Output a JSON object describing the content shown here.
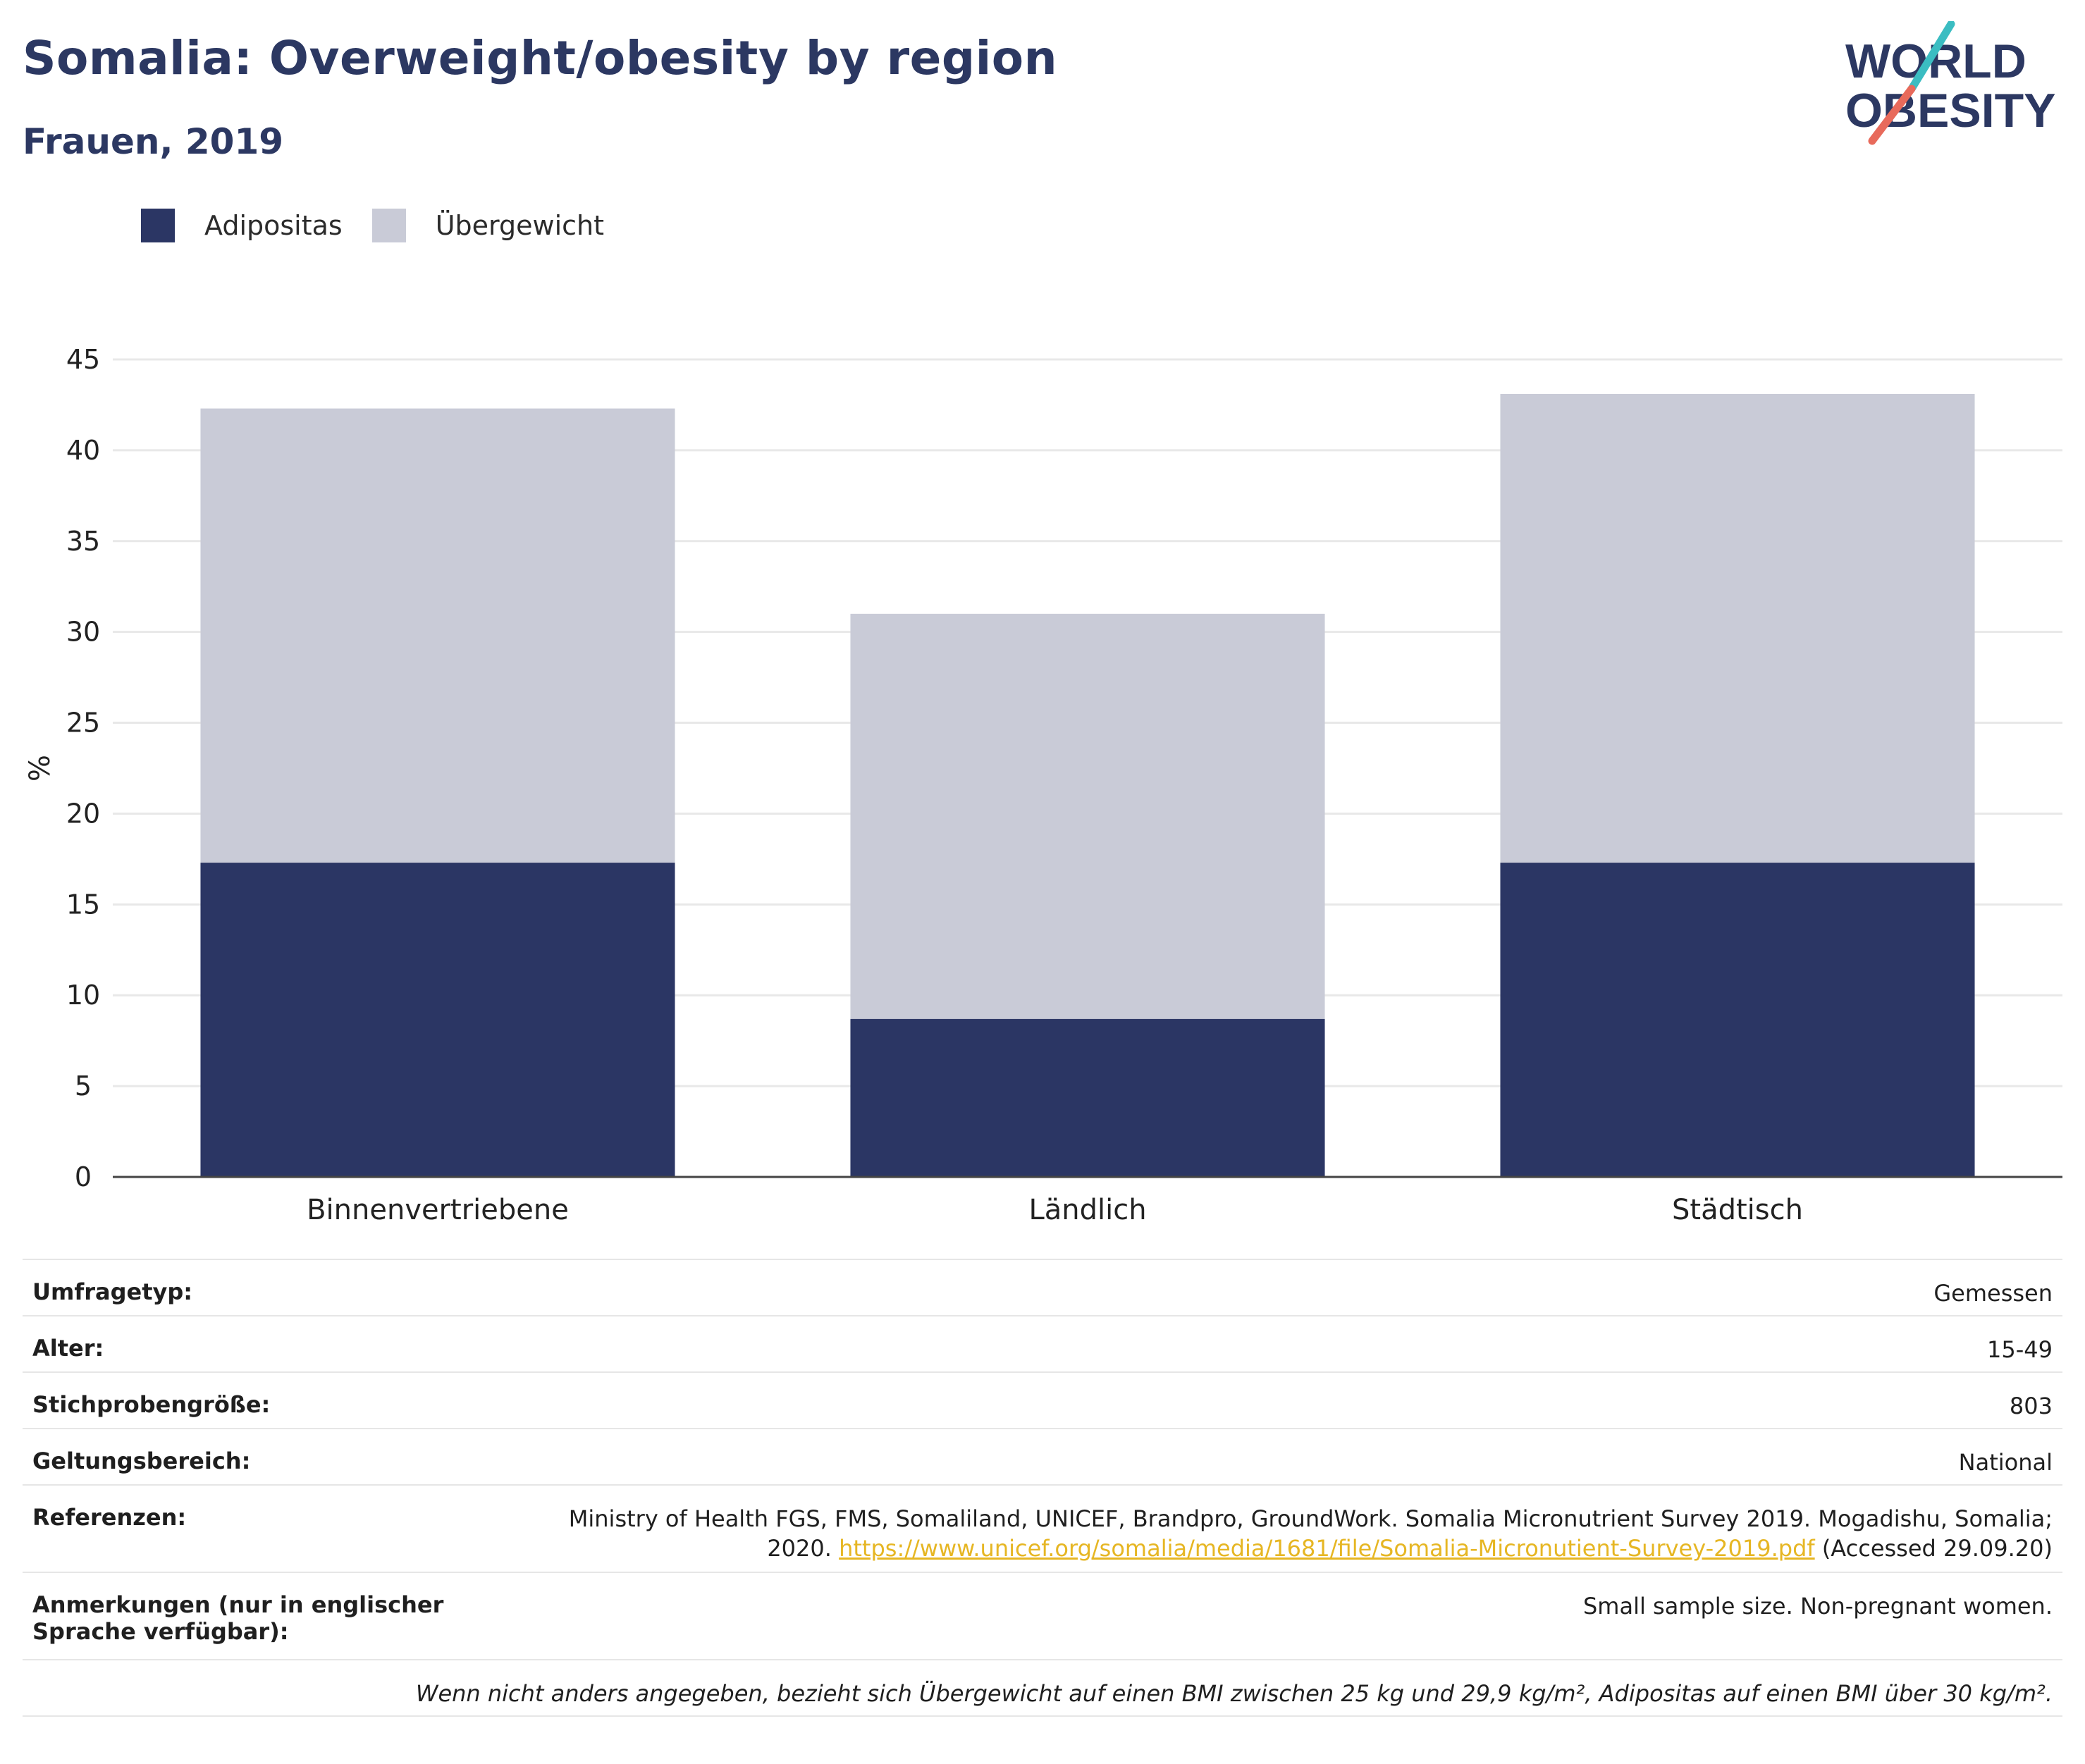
{
  "header": {
    "title": "Somalia: Overweight/obesity by region",
    "subtitle": "Frauen, 2019"
  },
  "logo": {
    "line1": "WORLD",
    "line2": "OBESITY"
  },
  "colors": {
    "obesity": "#2b3664",
    "overweight": "#c9cbd7",
    "title": "#2c3862",
    "link": "#e6b623",
    "logo_teal": "#3bbdc2",
    "logo_red": "#e86a5b"
  },
  "legend": [
    {
      "label": "Adipositas",
      "color": "#2b3664"
    },
    {
      "label": "Übergewicht",
      "color": "#c9cbd7"
    }
  ],
  "chart_data": {
    "type": "bar",
    "stacked": true,
    "categories": [
      "Binnenvertriebene",
      "Ländlich",
      "Städtisch"
    ],
    "series": [
      {
        "name": "Adipositas",
        "values": [
          17.3,
          8.7,
          17.3
        ]
      },
      {
        "name": "Übergewicht",
        "values": [
          25.0,
          22.3,
          25.8
        ]
      }
    ],
    "ylabel": "%",
    "ylim": [
      0,
      45
    ],
    "yticks": [
      0,
      5,
      10,
      15,
      20,
      25,
      30,
      35,
      40,
      45
    ],
    "grid": true,
    "legend_position": "top-left"
  },
  "meta": [
    {
      "label": "Umfragetyp:",
      "value": "Gemessen"
    },
    {
      "label": "Alter:",
      "value": "15-49"
    },
    {
      "label": "Stichprobengröße:",
      "value": "803"
    },
    {
      "label": "Geltungsbereich:",
      "value": "National"
    }
  ],
  "references": {
    "label": "Referenzen:",
    "text_line1": "Ministry of Health FGS, FMS, Somaliland, UNICEF, Brandpro, GroundWork. Somalia Micronutrient Survey 2019. Mogadishu, Somalia;",
    "text_prefix": "2020.",
    "url": "https://www.unicef.org/somalia/media/1681/file/Somalia-Micronutient-Survey-2019.pdf",
    "text_suffix": "(Accessed 29.09.20)"
  },
  "notes": {
    "label": "Anmerkungen (nur in englischer Sprache verfügbar):",
    "value": "Small sample size. Non-pregnant women."
  },
  "footnote": "Wenn nicht anders angegeben, bezieht sich Übergewicht auf einen BMI zwischen 25 kg und 29,9 kg/m², Adipositas auf einen BMI über 30 kg/m²."
}
